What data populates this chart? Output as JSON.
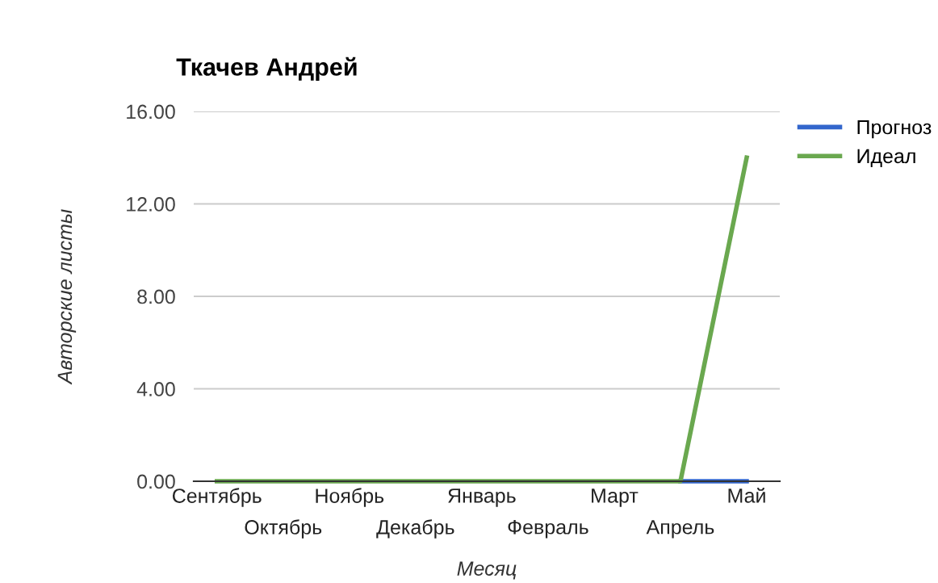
{
  "chart_data": {
    "type": "line",
    "title": "Ткачев Андрей",
    "xlabel": "Месяц",
    "ylabel": "Авторские листы",
    "categories": [
      "Сентябрь",
      "Октябрь",
      "Ноябрь",
      "Декабрь",
      "Январь",
      "Февраль",
      "Март",
      "Апрель",
      "Май"
    ],
    "series": [
      {
        "name": "Прогноз",
        "color": "#3366cc",
        "values": [
          null,
          null,
          null,
          null,
          null,
          null,
          null,
          0,
          0
        ]
      },
      {
        "name": "Идеал",
        "color": "#6aa84f",
        "values": [
          0,
          0,
          0,
          0,
          0,
          0,
          0,
          0,
          14
        ]
      }
    ],
    "ylim": [
      0,
      16
    ],
    "yticks": [
      {
        "value": 0,
        "label": "0.00"
      },
      {
        "value": 4,
        "label": "4.00"
      },
      {
        "value": 8,
        "label": "8.00"
      },
      {
        "value": 12,
        "label": "12.00"
      },
      {
        "value": 16,
        "label": "16.00"
      }
    ],
    "grid": "y",
    "legend": "right",
    "line_style": "solid",
    "marker": "none"
  }
}
